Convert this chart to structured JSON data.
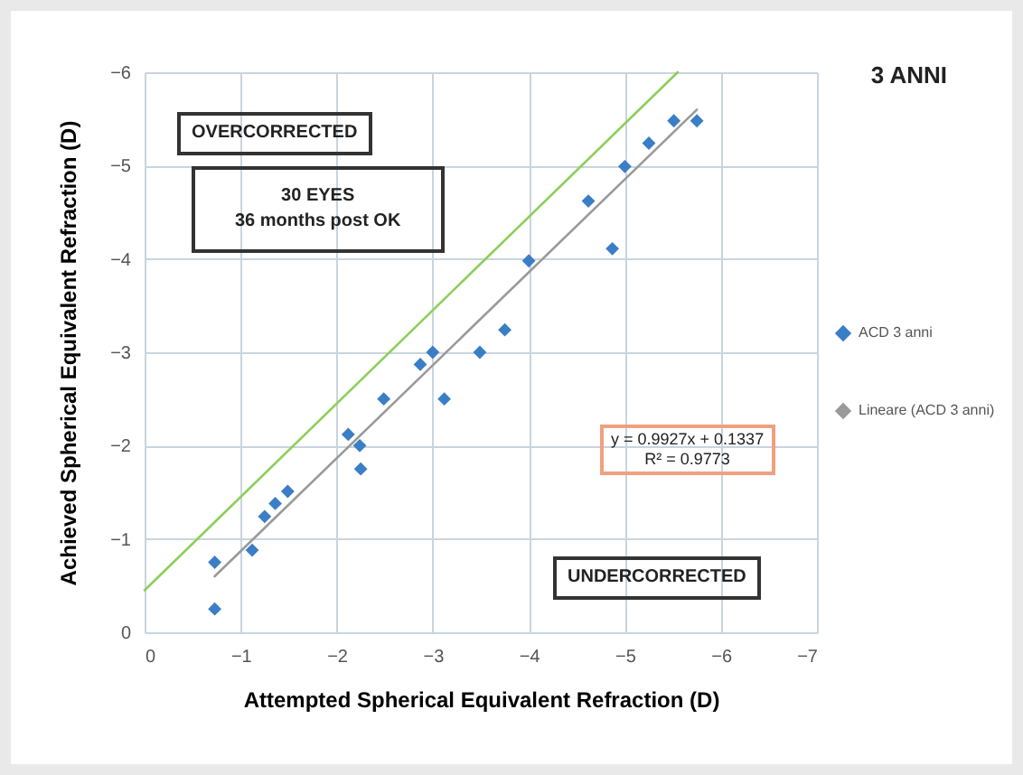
{
  "chart_data": {
    "type": "scatter",
    "title": "3 ANNI",
    "xlabel": "Attempted Spherical Equivalent Refraction (D)",
    "ylabel": "Achieved Spherical Equivalent Refraction (D)",
    "xlim": [
      0,
      -7
    ],
    "xticks": [
      0,
      -1,
      -2,
      -3,
      -4,
      -5,
      -6,
      -7
    ],
    "ylim": [
      0,
      -6
    ],
    "yticks": [
      0,
      -1,
      -2,
      -3,
      -4,
      -5,
      -6
    ],
    "grid": true,
    "legend": "right",
    "marker": "diamond",
    "series": [
      {
        "name": "ACD 3 anni",
        "color": "#3a7ec6",
        "x": [
          -0.73,
          -0.73,
          -1.12,
          -1.25,
          -1.36,
          -1.49,
          -2.12,
          -2.24,
          -2.25,
          -2.49,
          -2.87,
          -3.0,
          -3.12,
          -3.49,
          -3.75,
          -4.0,
          -4.62,
          -4.87,
          -5.0,
          -5.25,
          -5.51,
          -5.75
        ],
        "values": [
          -0.25,
          -0.75,
          -0.88,
          -1.24,
          -1.38,
          -1.51,
          -2.12,
          -2.0,
          -1.75,
          -2.5,
          -2.87,
          -3.0,
          -2.5,
          -3.0,
          -3.24,
          -3.98,
          -4.62,
          -4.11,
          -4.99,
          -5.24,
          -5.48,
          -5.48
        ]
      },
      {
        "name": "Lineare (ACD 3 anni)",
        "type": "line",
        "marker": "none",
        "color": "#9a9a9a",
        "x": [
          -0.73,
          -5.75
        ],
        "values": [
          -0.6,
          -5.6
        ]
      },
      {
        "type": "line",
        "marker": "none",
        "color": "#8ccf5a",
        "x": [
          0,
          -5.55
        ],
        "values": [
          -0.45,
          -6
        ]
      }
    ],
    "annotations": [
      "OVERCORRECTED",
      "30 EYES",
      "36 months post OK",
      "UNDERCORRECTED",
      "y = 0.9927x + 0.1337",
      "R² = 0.9773"
    ]
  }
}
